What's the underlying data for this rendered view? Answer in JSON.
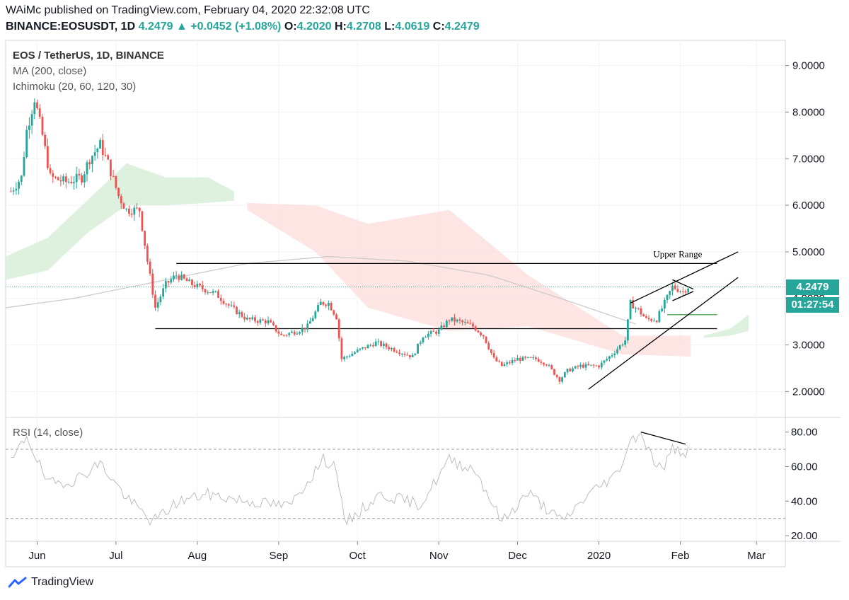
{
  "header": {
    "publisher_line": "WAiMc published on TradingView.com, February 04, 2020 22:32:08 UTC",
    "symbol": "BINANCE:EOSUSDT, 1D",
    "last": "4.2479",
    "change_arrow": "▲",
    "change": "+0.0452 (+1.08%)",
    "o_label": "O:",
    "o_value": "4.2020",
    "h_label": "H:",
    "h_value": "4.2708",
    "l_label": "L:",
    "l_value": "4.0619",
    "c_label": "C:",
    "c_value": "4.2479"
  },
  "legend": {
    "title": "EOS / TetherUS, 1D, BINANCE",
    "ma": "MA (200, close)",
    "ichimoku": "Ichimoku (20, 60, 120, 30)",
    "rsi": "RSI (14, close)"
  },
  "badges": {
    "price": "4.2479",
    "timer": "01:27:54"
  },
  "footer": {
    "brand": "TradingView"
  },
  "colors": {
    "up": "#26a69a",
    "down": "#ef5350",
    "cloud_green": "#d8efd9",
    "cloud_red": "#fde0df",
    "ma": "#c8c8c8",
    "rsi": "#bdbdbd",
    "grid": "#f0f3fa",
    "text": "#131722"
  },
  "chart_data": {
    "type": "candlestick",
    "title": "EOS / TetherUS, 1D, BINANCE",
    "x_tick_labels": [
      "Jun",
      "Jul",
      "Aug",
      "Sep",
      "Oct",
      "Nov",
      "Dec",
      "2020",
      "Feb",
      "Mar"
    ],
    "x_tick_dates": [
      "2019-06-01",
      "2019-07-01",
      "2019-08-01",
      "2019-09-01",
      "2019-10-01",
      "2019-11-01",
      "2019-12-01",
      "2020-01-01",
      "2020-02-01",
      "2020-03-01"
    ],
    "y_tick_labels": [
      "2.0000",
      "3.0000",
      "4.0000",
      "5.0000",
      "6.0000",
      "7.0000",
      "8.0000",
      "9.0000"
    ],
    "y_ticks": [
      2,
      3,
      4,
      5,
      6,
      7,
      8,
      9
    ],
    "ylim": [
      1.55,
      9.45
    ],
    "close_path_anchors": [
      {
        "date": "2019-05-22",
        "close": 6.3
      },
      {
        "date": "2019-05-26",
        "close": 6.6
      },
      {
        "date": "2019-05-28",
        "close": 7.6
      },
      {
        "date": "2019-05-31",
        "close": 8.3
      },
      {
        "date": "2019-06-03",
        "close": 7.5
      },
      {
        "date": "2019-06-06",
        "close": 6.6
      },
      {
        "date": "2019-06-12",
        "close": 6.5
      },
      {
        "date": "2019-06-18",
        "close": 6.6
      },
      {
        "date": "2019-06-21",
        "close": 7.0
      },
      {
        "date": "2019-06-25",
        "close": 7.3
      },
      {
        "date": "2019-06-28",
        "close": 6.9
      },
      {
        "date": "2019-07-02",
        "close": 6.2
      },
      {
        "date": "2019-07-05",
        "close": 5.9
      },
      {
        "date": "2019-07-10",
        "close": 5.9
      },
      {
        "date": "2019-07-13",
        "close": 4.8
      },
      {
        "date": "2019-07-16",
        "close": 3.8
      },
      {
        "date": "2019-07-20",
        "close": 4.3
      },
      {
        "date": "2019-07-24",
        "close": 4.5
      },
      {
        "date": "2019-07-30",
        "close": 4.3
      },
      {
        "date": "2019-08-08",
        "close": 4.1
      },
      {
        "date": "2019-08-14",
        "close": 3.8
      },
      {
        "date": "2019-08-20",
        "close": 3.55
      },
      {
        "date": "2019-08-28",
        "close": 3.5
      },
      {
        "date": "2019-09-02",
        "close": 3.2
      },
      {
        "date": "2019-09-08",
        "close": 3.3
      },
      {
        "date": "2019-09-12",
        "close": 3.4
      },
      {
        "date": "2019-09-17",
        "close": 3.9
      },
      {
        "date": "2019-09-20",
        "close": 3.9
      },
      {
        "date": "2019-09-23",
        "close": 3.6
      },
      {
        "date": "2019-09-25",
        "close": 2.7
      },
      {
        "date": "2019-10-02",
        "close": 2.9
      },
      {
        "date": "2019-10-08",
        "close": 3.05
      },
      {
        "date": "2019-10-15",
        "close": 2.9
      },
      {
        "date": "2019-10-22",
        "close": 2.75
      },
      {
        "date": "2019-10-26",
        "close": 3.2
      },
      {
        "date": "2019-11-01",
        "close": 3.3
      },
      {
        "date": "2019-11-05",
        "close": 3.55
      },
      {
        "date": "2019-11-09",
        "close": 3.5
      },
      {
        "date": "2019-11-14",
        "close": 3.4
      },
      {
        "date": "2019-11-18",
        "close": 3.2
      },
      {
        "date": "2019-11-22",
        "close": 2.7
      },
      {
        "date": "2019-11-25",
        "close": 2.55
      },
      {
        "date": "2019-12-01",
        "close": 2.7
      },
      {
        "date": "2019-12-08",
        "close": 2.7
      },
      {
        "date": "2019-12-12",
        "close": 2.6
      },
      {
        "date": "2019-12-17",
        "close": 2.25
      },
      {
        "date": "2019-12-20",
        "close": 2.45
      },
      {
        "date": "2019-12-25",
        "close": 2.55
      },
      {
        "date": "2020-01-01",
        "close": 2.55
      },
      {
        "date": "2020-01-06",
        "close": 2.8
      },
      {
        "date": "2020-01-11",
        "close": 3.1
      },
      {
        "date": "2020-01-13",
        "close": 3.9
      },
      {
        "date": "2020-01-16",
        "close": 3.75
      },
      {
        "date": "2020-01-19",
        "close": 3.55
      },
      {
        "date": "2020-01-23",
        "close": 3.55
      },
      {
        "date": "2020-01-26",
        "close": 3.9
      },
      {
        "date": "2020-01-29",
        "close": 4.25
      },
      {
        "date": "2020-02-02",
        "close": 4.15
      },
      {
        "date": "2020-02-04",
        "close": 4.2479
      }
    ],
    "ma200_anchors": [
      {
        "date": "2019-05-20",
        "value": 3.8
      },
      {
        "date": "2019-06-15",
        "value": 4.0
      },
      {
        "date": "2019-07-20",
        "value": 4.4
      },
      {
        "date": "2019-08-20",
        "value": 4.75
      },
      {
        "date": "2019-09-20",
        "value": 4.9
      },
      {
        "date": "2019-10-20",
        "value": 4.8
      },
      {
        "date": "2019-11-20",
        "value": 4.5
      },
      {
        "date": "2019-12-20",
        "value": 3.95
      },
      {
        "date": "2020-01-15",
        "value": 3.45
      }
    ],
    "ichimoku_cloud": {
      "green": [
        {
          "date": "2019-05-20",
          "top": 4.9,
          "bottom": 4.4
        },
        {
          "date": "2019-06-05",
          "top": 5.3,
          "bottom": 4.6
        },
        {
          "date": "2019-06-20",
          "top": 6.1,
          "bottom": 5.4
        },
        {
          "date": "2019-07-05",
          "top": 6.9,
          "bottom": 6.0
        },
        {
          "date": "2019-07-20",
          "top": 6.6,
          "bottom": 6.0
        },
        {
          "date": "2019-08-05",
          "top": 6.6,
          "bottom": 6.05
        },
        {
          "date": "2019-08-15",
          "top": 6.3,
          "bottom": 6.1
        }
      ],
      "red": [
        {
          "date": "2019-08-20",
          "top": 6.05,
          "bottom": 5.9
        },
        {
          "date": "2019-09-15",
          "top": 6.0,
          "bottom": 5.0
        },
        {
          "date": "2019-10-05",
          "top": 5.6,
          "bottom": 3.8
        },
        {
          "date": "2019-11-05",
          "top": 5.9,
          "bottom": 3.3
        },
        {
          "date": "2019-12-05",
          "top": 4.5,
          "bottom": 3.4
        },
        {
          "date": "2020-01-10",
          "top": 3.2,
          "bottom": 2.8
        },
        {
          "date": "2020-02-05",
          "top": 3.2,
          "bottom": 2.75
        }
      ],
      "green_forward": [
        {
          "date": "2020-02-10",
          "top": 3.2,
          "bottom": 3.15
        },
        {
          "date": "2020-02-20",
          "top": 3.35,
          "bottom": 3.2
        },
        {
          "date": "2020-02-27",
          "top": 3.65,
          "bottom": 3.3
        }
      ]
    },
    "annotations": {
      "upper_range_label": "Upper Range",
      "upper_range_level": 4.75,
      "lower_range_level": 3.35,
      "range_start": "2019-07-24",
      "range_end": "2020-02-15",
      "green_hline": {
        "value": 3.65,
        "start": "2020-01-27",
        "end": "2020-02-15"
      }
    },
    "rsi": {
      "y_tick_labels": [
        "20.00",
        "40.00",
        "60.00",
        "80.00"
      ],
      "y_ticks": [
        20,
        40,
        60,
        80
      ],
      "ylim": [
        18,
        86
      ],
      "bands": [
        30,
        70
      ],
      "anchors": [
        {
          "date": "2019-05-22",
          "value": 62
        },
        {
          "date": "2019-05-28",
          "value": 78
        },
        {
          "date": "2019-06-05",
          "value": 50
        },
        {
          "date": "2019-06-15",
          "value": 52
        },
        {
          "date": "2019-06-25",
          "value": 62
        },
        {
          "date": "2019-07-05",
          "value": 42
        },
        {
          "date": "2019-07-15",
          "value": 28
        },
        {
          "date": "2019-07-25",
          "value": 40
        },
        {
          "date": "2019-08-05",
          "value": 44
        },
        {
          "date": "2019-08-20",
          "value": 40
        },
        {
          "date": "2019-09-05",
          "value": 37
        },
        {
          "date": "2019-09-18",
          "value": 64
        },
        {
          "date": "2019-09-23",
          "value": 60
        },
        {
          "date": "2019-09-26",
          "value": 27
        },
        {
          "date": "2019-10-10",
          "value": 44
        },
        {
          "date": "2019-10-25",
          "value": 38
        },
        {
          "date": "2019-11-05",
          "value": 64
        },
        {
          "date": "2019-11-15",
          "value": 58
        },
        {
          "date": "2019-11-25",
          "value": 28
        },
        {
          "date": "2019-12-05",
          "value": 45
        },
        {
          "date": "2019-12-18",
          "value": 28
        },
        {
          "date": "2019-12-28",
          "value": 44
        },
        {
          "date": "2020-01-08",
          "value": 56
        },
        {
          "date": "2020-01-13",
          "value": 75
        },
        {
          "date": "2020-01-17",
          "value": 80
        },
        {
          "date": "2020-01-21",
          "value": 66
        },
        {
          "date": "2020-01-25",
          "value": 58
        },
        {
          "date": "2020-01-29",
          "value": 70
        },
        {
          "date": "2020-02-04",
          "value": 68
        }
      ]
    }
  }
}
